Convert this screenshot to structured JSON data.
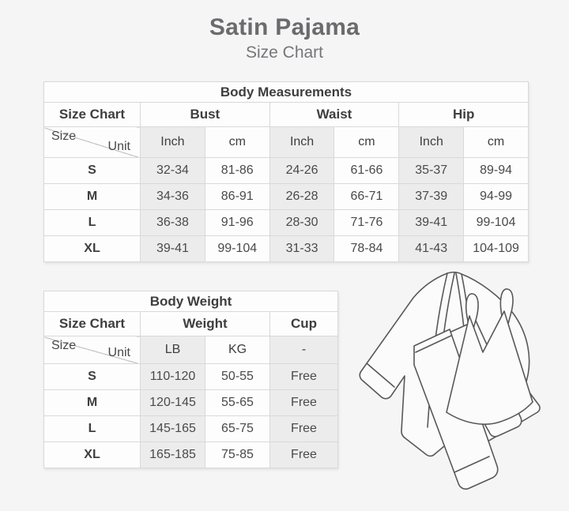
{
  "page": {
    "title": "Satin Pajama",
    "subtitle": "Size Chart",
    "background_color": "#f5f5f6"
  },
  "colors": {
    "cell_shade": "#ececec",
    "cell_white": "#fdfdfd",
    "table_border": "#d9d9d9",
    "heading_text": "#6b6b6d",
    "table_text": "#3e3e40",
    "line_art_stroke": "#58585a"
  },
  "measurements_table": {
    "title": "Body Measurements",
    "corner_label": "Size Chart",
    "corner_size": "Size",
    "corner_unit": "Unit",
    "groups": [
      {
        "label": "Bust",
        "units": [
          "Inch",
          "cm"
        ]
      },
      {
        "label": "Waist",
        "units": [
          "Inch",
          "cm"
        ]
      },
      {
        "label": "Hip",
        "units": [
          "Inch",
          "cm"
        ]
      }
    ],
    "rows": [
      {
        "size": "S",
        "values": [
          "32-34",
          "81-86",
          "24-26",
          "61-66",
          "35-37",
          "89-94"
        ]
      },
      {
        "size": "M",
        "values": [
          "34-36",
          "86-91",
          "26-28",
          "66-71",
          "37-39",
          "94-99"
        ]
      },
      {
        "size": "L",
        "values": [
          "36-38",
          "91-96",
          "28-30",
          "71-76",
          "39-41",
          "99-104"
        ]
      },
      {
        "size": "XL",
        "values": [
          "39-41",
          "99-104",
          "31-33",
          "78-84",
          "41-43",
          "104-109"
        ]
      }
    ]
  },
  "weight_table": {
    "title": "Body Weight",
    "corner_label": "Size Chart",
    "corner_size": "Size",
    "corner_unit": "Unit",
    "groups": [
      {
        "label": "Weight",
        "units": [
          "LB",
          "KG"
        ]
      },
      {
        "label": "Cup",
        "units": [
          "-"
        ]
      }
    ],
    "rows": [
      {
        "size": "S",
        "values": [
          "110-120",
          "50-55",
          "Free"
        ]
      },
      {
        "size": "M",
        "values": [
          "120-145",
          "55-65",
          "Free"
        ]
      },
      {
        "size": "L",
        "values": [
          "145-165",
          "65-75",
          "Free"
        ]
      },
      {
        "size": "XL",
        "values": [
          "165-185",
          "75-85",
          "Free"
        ]
      }
    ]
  },
  "illustration": {
    "name": "pajama-set-line-drawing"
  }
}
